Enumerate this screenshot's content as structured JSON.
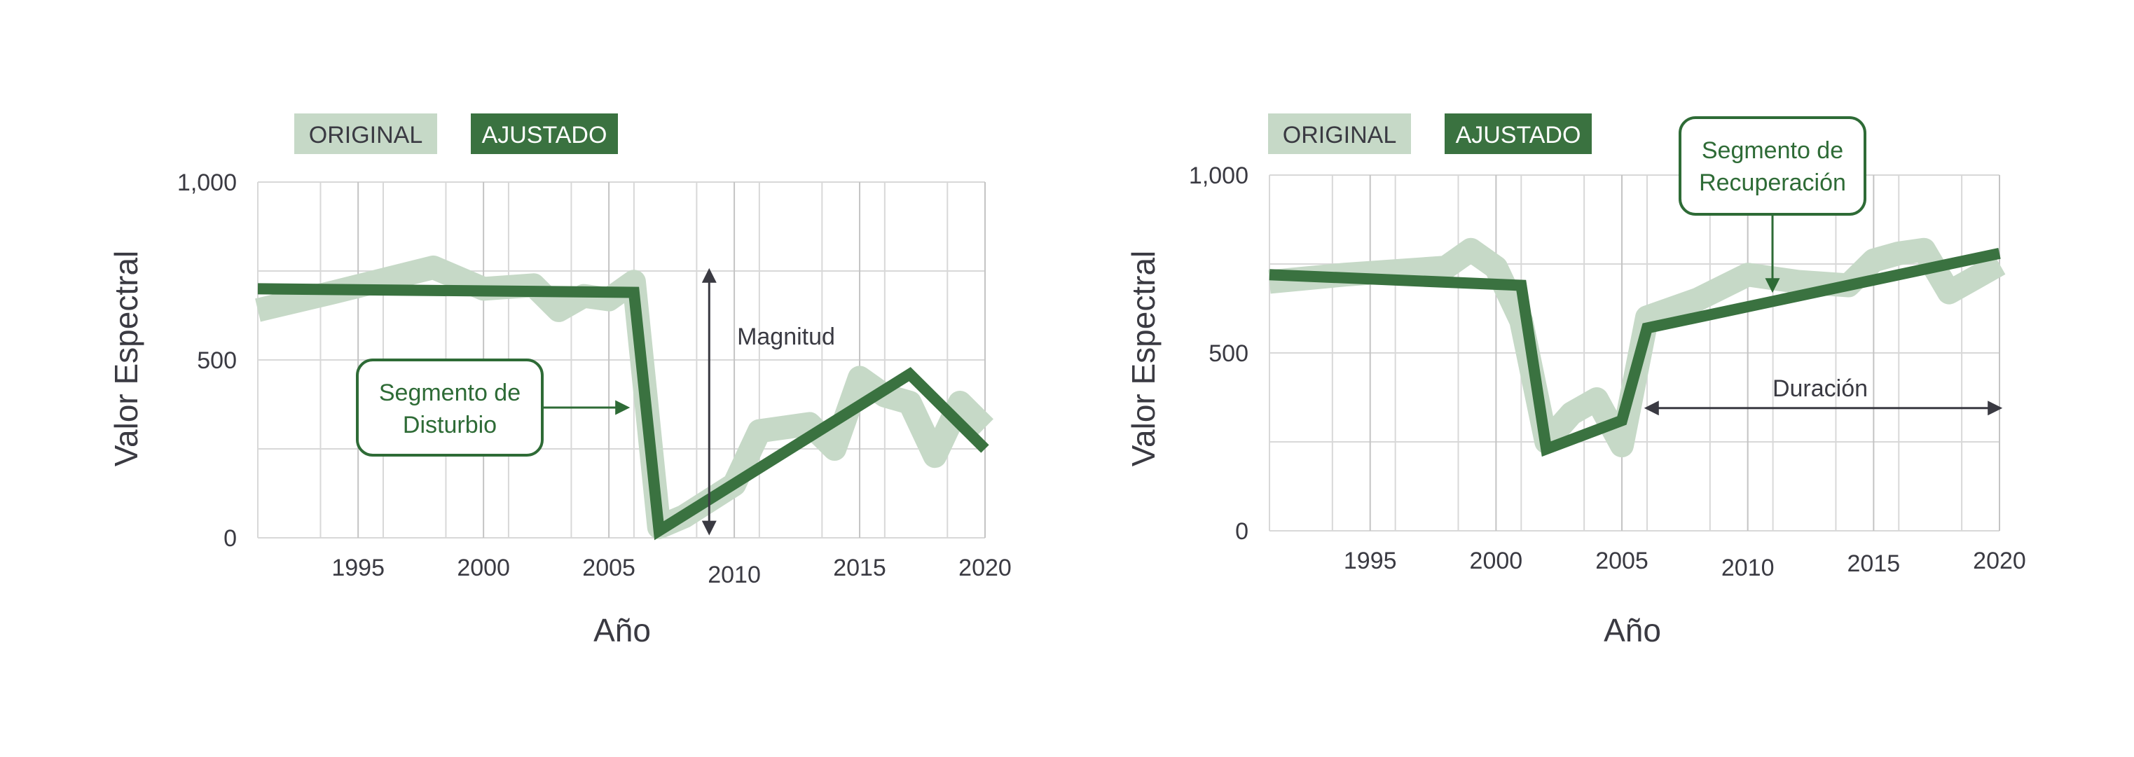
{
  "colors": {
    "original": "#c6d9c7",
    "fitted": "#3a7240",
    "annotation": "#2e6b36",
    "text": "#3a3a42",
    "grid": "#d8d8d8"
  },
  "chart_data": [
    {
      "type": "line",
      "xlabel": "Año",
      "ylabel": "Valor Espectral",
      "xlim": [
        1991,
        2020
      ],
      "ylim": [
        0,
        1000
      ],
      "xticks": [
        1995,
        2000,
        2005,
        2010,
        2015,
        2020
      ],
      "xtick_labels": [
        "1995",
        "2000",
        "2005",
        "2010",
        "2015",
        "2020"
      ],
      "yticks": [
        0,
        500,
        1000
      ],
      "ytick_labels": [
        "0",
        "500",
        "1,000"
      ],
      "grid": true,
      "legend": {
        "position": "top-left",
        "entries": [
          "ORIGINAL",
          "AJUSTADO"
        ]
      },
      "series": [
        {
          "name": "ORIGINAL",
          "x": [
            1991,
            1994,
            1998,
            2000,
            2002,
            2003,
            2004,
            2005,
            2006,
            2007,
            2008,
            2010,
            2011,
            2013,
            2014,
            2015,
            2016,
            2017,
            2018,
            2019,
            2020
          ],
          "y": [
            640,
            690,
            760,
            700,
            710,
            640,
            680,
            670,
            720,
            30,
            60,
            150,
            300,
            320,
            250,
            450,
            400,
            380,
            230,
            380,
            310
          ]
        },
        {
          "name": "AJUSTADO",
          "x": [
            1991,
            2006,
            2007,
            2017,
            2020
          ],
          "y": [
            700,
            690,
            20,
            460,
            250
          ]
        }
      ],
      "annotations": [
        {
          "text": "Segmento de\nDisturbio",
          "x": 2006,
          "y": 370
        },
        {
          "text": "Magnitud",
          "x": 2009,
          "y_range": [
            15,
            750
          ]
        }
      ]
    },
    {
      "type": "line",
      "xlabel": "Año",
      "ylabel": "Valor Espectral",
      "xlim": [
        1991,
        2020
      ],
      "ylim": [
        0,
        1000
      ],
      "xticks": [
        1995,
        2000,
        2005,
        2010,
        2015,
        2020
      ],
      "xtick_labels": [
        "1995",
        "2000",
        "2005",
        "2010",
        "2015",
        "2020"
      ],
      "yticks": [
        0,
        500,
        1000
      ],
      "ytick_labels": [
        "0",
        "500",
        "1,000"
      ],
      "grid": true,
      "legend": {
        "position": "top-left",
        "entries": [
          "ORIGINAL",
          "AJUSTADO"
        ]
      },
      "series": [
        {
          "name": "ORIGINAL",
          "x": [
            1991,
            1994,
            1998,
            1999,
            2000,
            2001,
            2002,
            2003,
            2004,
            2005,
            2006,
            2008,
            2010,
            2012,
            2014,
            2015,
            2016,
            2017,
            2018,
            2019,
            2020
          ],
          "y": [
            700,
            720,
            740,
            790,
            740,
            590,
            250,
            330,
            370,
            240,
            600,
            650,
            720,
            700,
            690,
            760,
            780,
            790,
            670,
            710,
            750
          ]
        },
        {
          "name": "AJUSTADO",
          "x": [
            1991,
            2001,
            2002,
            2005,
            2006,
            2020
          ],
          "y": [
            720,
            690,
            230,
            310,
            570,
            780
          ]
        }
      ],
      "annotations": [
        {
          "text": "Segmento de\nRecuperación",
          "x": 2011,
          "y": 685
        },
        {
          "text": "Duración",
          "x_range": [
            2006,
            2020
          ],
          "y": 345
        }
      ]
    }
  ]
}
